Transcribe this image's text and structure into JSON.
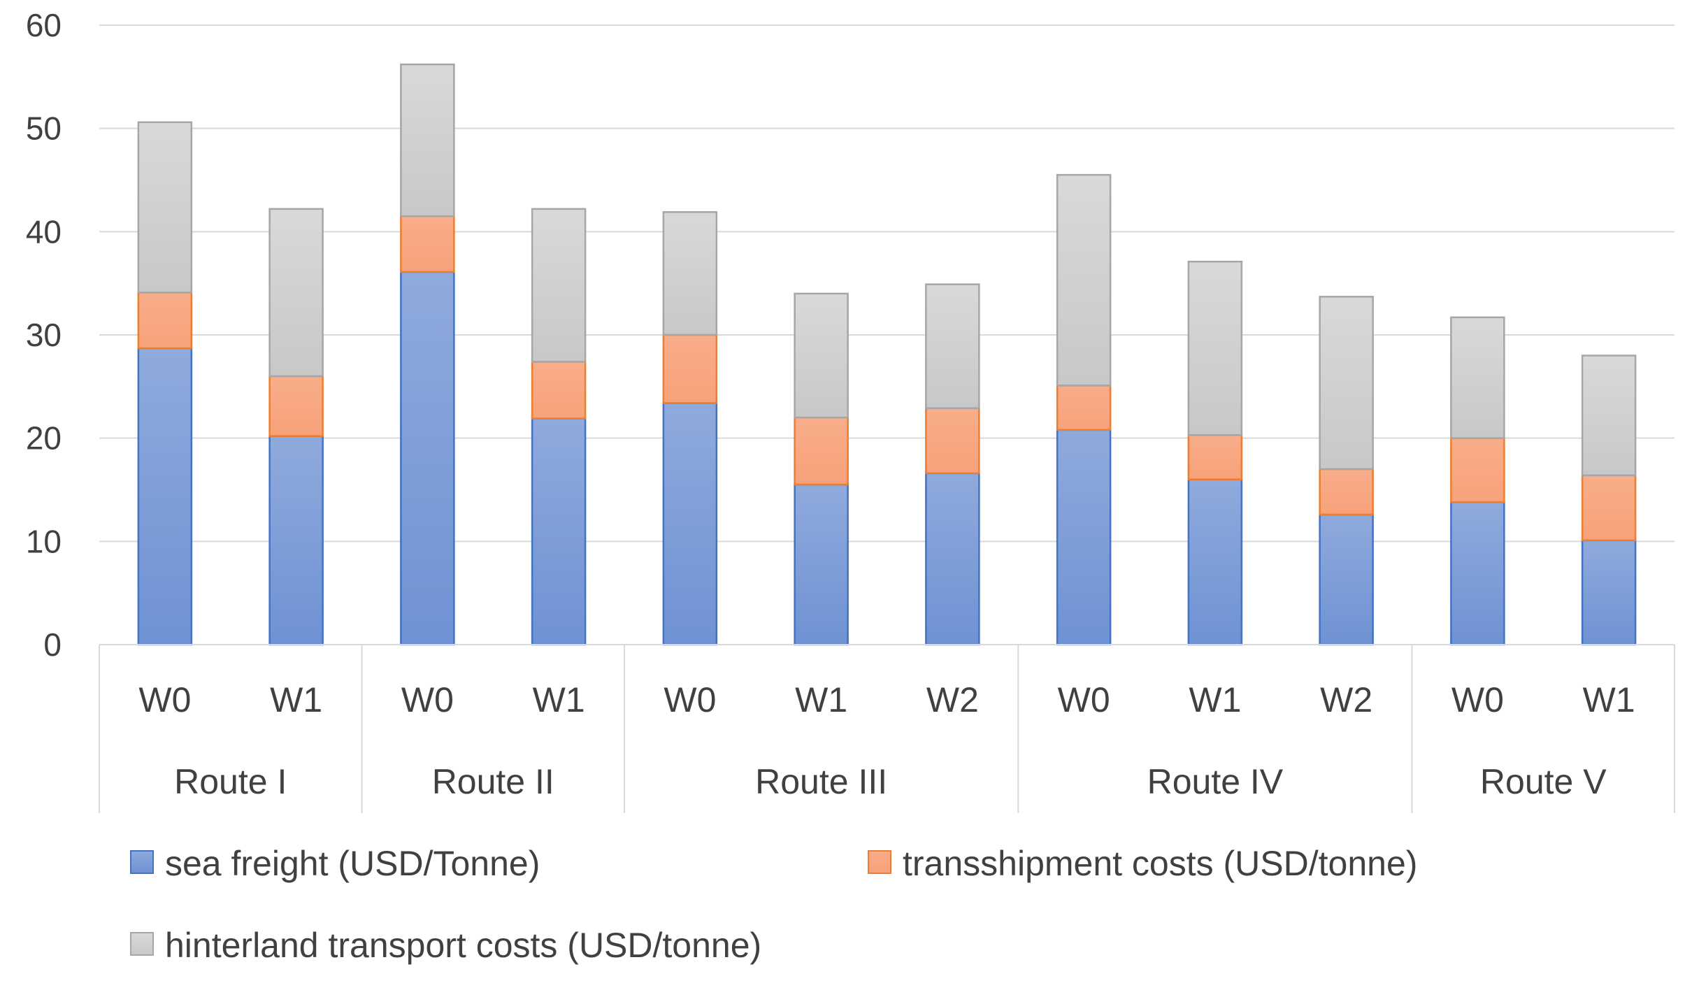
{
  "chart_data": {
    "type": "bar",
    "stacked": true,
    "title": "",
    "xlabel": "",
    "ylabel": "",
    "ylim": [
      0,
      60
    ],
    "yticks": [
      0,
      10,
      20,
      30,
      40,
      50,
      60
    ],
    "grid": true,
    "legend_position": "bottom",
    "groups": [
      {
        "label": "Route I",
        "categories": [
          "W0",
          "W1"
        ]
      },
      {
        "label": "Route II",
        "categories": [
          "W0",
          "W1"
        ]
      },
      {
        "label": "Route III",
        "categories": [
          "W0",
          "W1",
          "W2"
        ]
      },
      {
        "label": "Route IV",
        "categories": [
          "W0",
          "W1",
          "W2"
        ]
      },
      {
        "label": "Route V",
        "categories": [
          "W0",
          "W1"
        ]
      }
    ],
    "categories": [
      "W0",
      "W1",
      "W0",
      "W1",
      "W0",
      "W1",
      "W2",
      "W0",
      "W1",
      "W2",
      "W0",
      "W1"
    ],
    "series": [
      {
        "name": "sea freight (USD/Tonne)",
        "color": "#8faadc",
        "color_dark": "#6f92d4",
        "border": "#4472c4",
        "values": [
          28.7,
          20.2,
          36.1,
          21.9,
          23.4,
          15.5,
          16.6,
          20.8,
          16.0,
          12.6,
          13.8,
          10.1
        ]
      },
      {
        "name": "transshipment costs (USD/tonne)",
        "color": "#f8ad8a",
        "color_dark": "#f7a27a",
        "border": "#ed7d31",
        "values": [
          5.4,
          5.8,
          5.4,
          5.5,
          6.6,
          6.5,
          6.3,
          4.3,
          4.3,
          4.4,
          6.2,
          6.3
        ]
      },
      {
        "name": "hinterland transport costs (USD/tonne)",
        "color": "#d9d9d9",
        "color_dark": "#c8c8c8",
        "border": "#a6a6a6",
        "values": [
          16.5,
          16.2,
          14.7,
          14.8,
          11.9,
          12.0,
          12.0,
          20.4,
          16.8,
          16.7,
          11.7,
          11.6
        ]
      }
    ]
  }
}
